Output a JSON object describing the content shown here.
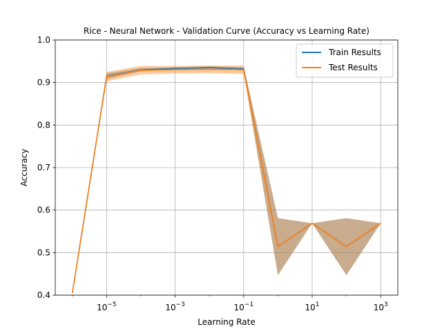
{
  "chart_data": {
    "type": "line",
    "title": "Rice - Neural Network - Validation Curve (Accuracy vs Learning Rate)",
    "xlabel": "Learning Rate",
    "ylabel": "Accuracy",
    "xscale": "log",
    "ylim": [
      0.4,
      1.0
    ],
    "xlim_exponent": [
      -6.5,
      3.5
    ],
    "x": [
      1e-06,
      1e-05,
      0.0001,
      0.001,
      0.01,
      0.1,
      1,
      10,
      100,
      1000
    ],
    "yticks": [
      0.4,
      0.5,
      0.6,
      0.7,
      0.8,
      0.9,
      1.0
    ],
    "ytick_labels": [
      "0.4",
      "0.5",
      "0.6",
      "0.7",
      "0.8",
      "0.9",
      "1.0"
    ],
    "xtick_exponents": [
      -5,
      -3,
      -1,
      1,
      3
    ],
    "xtick_labels": [
      "10",
      "10",
      "10",
      "10",
      "10"
    ],
    "xtick_superscripts": [
      "−5",
      "−3",
      "−1",
      "1",
      "3"
    ],
    "grid": true,
    "legend_position": "top-right",
    "series": [
      {
        "name": "Train Results",
        "color": "#1f77b4",
        "values": [
          0.405,
          0.915,
          0.93,
          0.933,
          0.935,
          0.932,
          0.514,
          0.569,
          0.514,
          0.569
        ],
        "band": [
          0.0,
          0.007,
          0.004,
          0.003,
          0.003,
          0.004,
          0.067,
          0.0,
          0.067,
          0.0
        ]
      },
      {
        "name": "Test Results",
        "color": "#ff7f0e",
        "values": [
          0.405,
          0.914,
          0.929,
          0.93,
          0.931,
          0.93,
          0.514,
          0.569,
          0.514,
          0.569
        ],
        "band": [
          0.0,
          0.011,
          0.01,
          0.009,
          0.009,
          0.01,
          0.067,
          0.0,
          0.067,
          0.0
        ]
      }
    ]
  }
}
